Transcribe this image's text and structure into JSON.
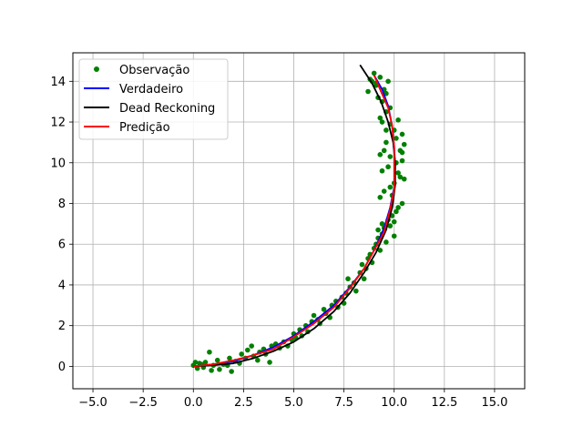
{
  "chart_data": {
    "type": "line",
    "title": "",
    "xlabel": "",
    "ylabel": "",
    "xlim": [
      -6.0,
      16.5
    ],
    "ylim": [
      -1.1,
      15.4
    ],
    "xticks": [
      -5.0,
      -2.5,
      0.0,
      2.5,
      5.0,
      7.5,
      10.0,
      12.5,
      15.0
    ],
    "xtick_labels": [
      "−5.0",
      "−2.5",
      "0.0",
      "2.5",
      "5.0",
      "7.5",
      "10.0",
      "12.5",
      "15.0"
    ],
    "yticks": [
      0,
      2,
      4,
      6,
      8,
      10,
      12,
      14
    ],
    "ytick_labels": [
      "0",
      "2",
      "4",
      "6",
      "8",
      "10",
      "12",
      "14"
    ],
    "grid": true,
    "legend_position": "top-left",
    "series": [
      {
        "name": "Observação",
        "kind": "scatter",
        "color": "#008000",
        "points": [
          [
            0.0,
            0.05
          ],
          [
            0.1,
            0.2
          ],
          [
            0.2,
            -0.1
          ],
          [
            0.3,
            0.15
          ],
          [
            0.4,
            0.1
          ],
          [
            0.5,
            -0.05
          ],
          [
            0.6,
            0.2
          ],
          [
            0.8,
            0.7
          ],
          [
            0.9,
            -0.2
          ],
          [
            1.0,
            0.05
          ],
          [
            1.2,
            0.3
          ],
          [
            1.3,
            -0.15
          ],
          [
            1.5,
            0.1
          ],
          [
            1.7,
            0.05
          ],
          [
            1.8,
            0.4
          ],
          [
            1.9,
            -0.25
          ],
          [
            2.1,
            0.25
          ],
          [
            2.3,
            0.15
          ],
          [
            2.4,
            0.6
          ],
          [
            2.6,
            0.4
          ],
          [
            2.7,
            0.8
          ],
          [
            2.9,
            1.0
          ],
          [
            3.0,
            0.5
          ],
          [
            3.2,
            0.3
          ],
          [
            3.3,
            0.7
          ],
          [
            3.5,
            0.85
          ],
          [
            3.6,
            0.6
          ],
          [
            3.8,
            0.2
          ],
          [
            3.9,
            1.0
          ],
          [
            4.1,
            1.1
          ],
          [
            4.3,
            0.9
          ],
          [
            4.5,
            1.2
          ],
          [
            4.7,
            1.0
          ],
          [
            4.9,
            1.3
          ],
          [
            5.0,
            1.6
          ],
          [
            5.1,
            1.4
          ],
          [
            5.3,
            1.8
          ],
          [
            5.4,
            1.5
          ],
          [
            5.6,
            2.0
          ],
          [
            5.7,
            1.7
          ],
          [
            5.9,
            2.2
          ],
          [
            6.0,
            2.5
          ],
          [
            6.2,
            2.3
          ],
          [
            6.3,
            2.1
          ],
          [
            6.5,
            2.8
          ],
          [
            6.6,
            2.6
          ],
          [
            6.8,
            2.4
          ],
          [
            6.9,
            3.0
          ],
          [
            7.1,
            3.2
          ],
          [
            7.2,
            2.9
          ],
          [
            7.4,
            3.4
          ],
          [
            7.5,
            3.1
          ],
          [
            7.6,
            3.6
          ],
          [
            7.7,
            4.3
          ],
          [
            7.8,
            3.9
          ],
          [
            8.0,
            4.1
          ],
          [
            8.1,
            3.7
          ],
          [
            8.3,
            4.6
          ],
          [
            8.4,
            5.0
          ],
          [
            8.5,
            4.3
          ],
          [
            8.6,
            4.8
          ],
          [
            8.7,
            5.3
          ],
          [
            8.8,
            5.5
          ],
          [
            8.9,
            5.1
          ],
          [
            9.0,
            5.8
          ],
          [
            9.1,
            6.0
          ],
          [
            9.2,
            6.3
          ],
          [
            9.3,
            5.7
          ],
          [
            9.4,
            6.5
          ],
          [
            9.5,
            6.8
          ],
          [
            9.6,
            6.1
          ],
          [
            9.7,
            7.2
          ],
          [
            9.8,
            6.9
          ],
          [
            9.9,
            7.4
          ],
          [
            10.0,
            7.1
          ],
          [
            10.1,
            7.6
          ],
          [
            10.2,
            7.8
          ],
          [
            10.4,
            8.0
          ],
          [
            9.3,
            8.3
          ],
          [
            9.5,
            8.6
          ],
          [
            9.8,
            8.8
          ],
          [
            10.0,
            9.0
          ],
          [
            10.3,
            9.3
          ],
          [
            10.5,
            9.2
          ],
          [
            9.4,
            9.6
          ],
          [
            9.7,
            9.8
          ],
          [
            10.1,
            10.0
          ],
          [
            10.4,
            10.1
          ],
          [
            9.8,
            10.3
          ],
          [
            9.3,
            10.4
          ],
          [
            10.3,
            10.6
          ],
          [
            10.5,
            10.9
          ],
          [
            9.6,
            11.0
          ],
          [
            10.1,
            11.2
          ],
          [
            10.4,
            11.4
          ],
          [
            9.6,
            11.6
          ],
          [
            9.8,
            11.9
          ],
          [
            10.2,
            12.1
          ],
          [
            9.3,
            12.2
          ],
          [
            9.6,
            12.5
          ],
          [
            9.8,
            12.7
          ],
          [
            9.4,
            13.0
          ],
          [
            9.2,
            13.2
          ],
          [
            9.6,
            13.4
          ],
          [
            9.5,
            13.6
          ],
          [
            9.1,
            13.8
          ],
          [
            8.9,
            14.0
          ],
          [
            9.3,
            14.2
          ],
          [
            9.0,
            14.4
          ],
          [
            8.8,
            14.1
          ],
          [
            9.1,
            13.9
          ],
          [
            8.7,
            13.5
          ],
          [
            9.7,
            14.0
          ],
          [
            9.4,
            12.0
          ],
          [
            10.0,
            11.6
          ],
          [
            10.4,
            10.5
          ],
          [
            9.5,
            10.6
          ],
          [
            10.2,
            9.5
          ],
          [
            9.9,
            8.4
          ],
          [
            9.4,
            7.0
          ],
          [
            9.2,
            6.7
          ],
          [
            10.0,
            6.4
          ]
        ]
      },
      {
        "name": "Verdadeiro",
        "kind": "line",
        "color": "#0000ff",
        "points": [
          [
            0.0,
            0.0
          ],
          [
            1.0,
            0.1
          ],
          [
            2.0,
            0.25
          ],
          [
            3.0,
            0.55
          ],
          [
            4.0,
            0.95
          ],
          [
            5.0,
            1.5
          ],
          [
            6.0,
            2.2
          ],
          [
            7.0,
            3.0
          ],
          [
            7.8,
            3.9
          ],
          [
            8.5,
            4.8
          ],
          [
            9.0,
            5.7
          ],
          [
            9.5,
            6.8
          ],
          [
            9.8,
            7.8
          ],
          [
            10.0,
            8.8
          ],
          [
            10.05,
            9.8
          ],
          [
            10.0,
            10.8
          ],
          [
            9.9,
            11.8
          ],
          [
            9.7,
            12.8
          ],
          [
            9.4,
            13.6
          ],
          [
            9.0,
            14.3
          ]
        ]
      },
      {
        "name": "Dead Reckoning",
        "kind": "line",
        "color": "#000000",
        "points": [
          [
            0.0,
            0.0
          ],
          [
            1.0,
            0.05
          ],
          [
            2.0,
            0.15
          ],
          [
            3.0,
            0.4
          ],
          [
            4.0,
            0.75
          ],
          [
            5.0,
            1.2
          ],
          [
            6.0,
            1.85
          ],
          [
            7.0,
            2.7
          ],
          [
            7.8,
            3.6
          ],
          [
            8.5,
            4.6
          ],
          [
            9.1,
            5.6
          ],
          [
            9.6,
            6.7
          ],
          [
            9.9,
            7.8
          ],
          [
            10.05,
            8.9
          ],
          [
            10.05,
            10.0
          ],
          [
            9.95,
            11.0
          ],
          [
            9.7,
            12.0
          ],
          [
            9.35,
            13.0
          ],
          [
            8.9,
            13.9
          ],
          [
            8.3,
            14.8
          ]
        ]
      },
      {
        "name": "Predição",
        "kind": "line",
        "color": "#ff0000",
        "points": [
          [
            0.0,
            0.0
          ],
          [
            1.0,
            0.1
          ],
          [
            2.0,
            0.3
          ],
          [
            3.0,
            0.55
          ],
          [
            4.0,
            0.85
          ],
          [
            5.0,
            1.45
          ],
          [
            6.0,
            2.1
          ],
          [
            7.0,
            2.9
          ],
          [
            7.8,
            3.85
          ],
          [
            8.5,
            4.8
          ],
          [
            9.0,
            5.7
          ],
          [
            9.5,
            6.6
          ],
          [
            9.8,
            7.7
          ],
          [
            10.0,
            8.7
          ],
          [
            10.0,
            9.8
          ],
          [
            10.0,
            10.8
          ],
          [
            9.9,
            11.8
          ],
          [
            9.7,
            12.7
          ],
          [
            9.3,
            13.6
          ],
          [
            9.0,
            14.3
          ]
        ]
      }
    ]
  }
}
